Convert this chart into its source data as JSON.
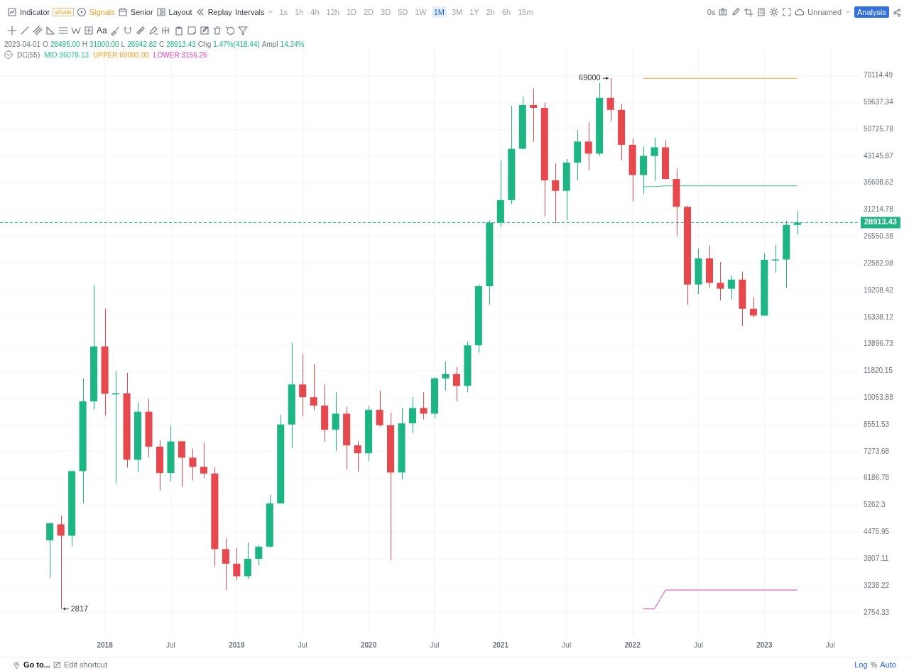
{
  "chart_data": {
    "type": "candlestick",
    "x": [
      "2017-08",
      "2017-09",
      "2017-10",
      "2017-11",
      "2017-12",
      "2018-01",
      "2018-02",
      "2018-03",
      "2018-04",
      "2018-05",
      "2018-06",
      "2018-07",
      "2018-08",
      "2018-09",
      "2018-10",
      "2018-11",
      "2018-12",
      "2019-01",
      "2019-02",
      "2019-03",
      "2019-04",
      "2019-05",
      "2019-06",
      "2019-07",
      "2019-08",
      "2019-09",
      "2019-10",
      "2019-11",
      "2019-12",
      "2020-01",
      "2020-02",
      "2020-03",
      "2020-04",
      "2020-05",
      "2020-06",
      "2020-07",
      "2020-08",
      "2020-09",
      "2020-10",
      "2020-11",
      "2020-12",
      "2021-01",
      "2021-02",
      "2021-03",
      "2021-04",
      "2021-05",
      "2021-06",
      "2021-07",
      "2021-08",
      "2021-09",
      "2021-10",
      "2021-11",
      "2021-12",
      "2022-01",
      "2022-02",
      "2022-03",
      "2022-04",
      "2022-05",
      "2022-06",
      "2022-07",
      "2022-08",
      "2022-09",
      "2022-10",
      "2022-11",
      "2022-12",
      "2023-01",
      "2023-02",
      "2023-03",
      "2023-04"
    ],
    "ohlc": [
      [
        4260,
        4750,
        3400,
        4720
      ],
      [
        4690,
        4940,
        2817,
        4380
      ],
      [
        4380,
        6500,
        4110,
        6460
      ],
      [
        6460,
        11300,
        5330,
        9840
      ],
      [
        9840,
        19800,
        9380,
        13700
      ],
      [
        13700,
        17200,
        9040,
        10300
      ],
      [
        10290,
        11800,
        6000,
        10330
      ],
      [
        10330,
        11700,
        6600,
        6920
      ],
      [
        6920,
        9760,
        6430,
        9250
      ],
      [
        9250,
        10000,
        7030,
        7490
      ],
      [
        7490,
        7790,
        5750,
        6390
      ],
      [
        6390,
        8510,
        6070,
        7730
      ],
      [
        7740,
        7750,
        5880,
        7010
      ],
      [
        7010,
        7410,
        6110,
        6630
      ],
      [
        6630,
        7680,
        6210,
        6370
      ],
      [
        6370,
        6620,
        3650,
        4040
      ],
      [
        4040,
        4310,
        3156.26,
        3700
      ],
      [
        3700,
        4070,
        3350,
        3430
      ],
      [
        3430,
        4200,
        3370,
        3810
      ],
      [
        3810,
        4140,
        3670,
        4100
      ],
      [
        4100,
        5600,
        4070,
        5320
      ],
      [
        5320,
        9070,
        5320,
        8560
      ],
      [
        8560,
        14000,
        7440,
        10900
      ],
      [
        10900,
        13100,
        9010,
        10100
      ],
      [
        10100,
        12300,
        9320,
        9590
      ],
      [
        9590,
        10900,
        7710,
        8290
      ],
      [
        8290,
        10400,
        7300,
        9140
      ],
      [
        9140,
        9510,
        6520,
        7550
      ],
      [
        7550,
        7750,
        6440,
        7200
      ],
      [
        7200,
        9580,
        6870,
        9350
      ],
      [
        9350,
        10500,
        8450,
        8520
      ],
      [
        8520,
        9190,
        3780,
        6410
      ],
      [
        6410,
        9460,
        6150,
        8620
      ],
      [
        8620,
        10100,
        8120,
        9450
      ],
      [
        9450,
        10400,
        8830,
        9140
      ],
      [
        9140,
        11400,
        8890,
        11300
      ],
      [
        11300,
        12500,
        10500,
        11600
      ],
      [
        11600,
        12100,
        9830,
        10800
      ],
      [
        10800,
        14100,
        10400,
        13800
      ],
      [
        13800,
        19900,
        13200,
        19700
      ],
      [
        19700,
        29300,
        17600,
        28900
      ],
      [
        28900,
        42000,
        28100,
        33100
      ],
      [
        33100,
        58400,
        32300,
        45100
      ],
      [
        45100,
        61800,
        45000,
        58700
      ],
      [
        58700,
        64900,
        47000,
        57700
      ],
      [
        57700,
        59600,
        30000,
        37300
      ],
      [
        37300,
        41300,
        28800,
        35000
      ],
      [
        35000,
        42400,
        29300,
        41500
      ],
      [
        41500,
        50500,
        37300,
        47100
      ],
      [
        47100,
        52900,
        39600,
        43800
      ],
      [
        43800,
        67000,
        43300,
        61300
      ],
      [
        61300,
        69000,
        53300,
        57000
      ],
      [
        57000,
        59100,
        42000,
        46200
      ],
      [
        46200,
        48000,
        32900,
        38500
      ],
      [
        38500,
        45800,
        34300,
        43200
      ],
      [
        43200,
        48200,
        37200,
        45500
      ],
      [
        45500,
        47400,
        37500,
        37600
      ],
      [
        37600,
        40000,
        26700,
        31800
      ],
      [
        31800,
        32000,
        17600,
        19900
      ],
      [
        19900,
        24700,
        18800,
        23300
      ],
      [
        23300,
        25200,
        19500,
        20100
      ],
      [
        20100,
        22800,
        18100,
        19400
      ],
      [
        19400,
        21000,
        18200,
        20500
      ],
      [
        20500,
        21500,
        15500,
        17200
      ],
      [
        17200,
        18400,
        16300,
        16500
      ],
      [
        16500,
        24000,
        16500,
        23100
      ],
      [
        23100,
        25300,
        21400,
        23140
      ],
      [
        23140,
        29200,
        19500,
        28500
      ],
      [
        28495,
        31000,
        26942.82,
        28913.43
      ]
    ],
    "colors": [
      "#1db584",
      "#e5484d",
      "#1db584",
      "#1db584",
      "#1db584",
      "#e5484d",
      "#1db584",
      "#e5484d",
      "#1db584",
      "#e5484d",
      "#e5484d",
      "#1db584",
      "#e5484d",
      "#e5484d",
      "#e5484d",
      "#e5484d",
      "#e5484d",
      "#e5484d",
      "#1db584",
      "#1db584",
      "#1db584",
      "#1db584",
      "#1db584",
      "#e5484d",
      "#e5484d",
      "#e5484d",
      "#1db584",
      "#e5484d",
      "#e5484d",
      "#1db584",
      "#e5484d",
      "#e5484d",
      "#1db584",
      "#1db584",
      "#e5484d",
      "#1db584",
      "#1db584",
      "#e5484d",
      "#1db584",
      "#1db584",
      "#1db584",
      "#1db584",
      "#1db584",
      "#1db584",
      "#e5484d",
      "#e5484d",
      "#e5484d",
      "#1db584",
      "#1db584",
      "#e5484d",
      "#1db584",
      "#e5484d",
      "#e5484d",
      "#e5484d",
      "#1db584",
      "#1db584",
      "#e5484d",
      "#e5484d",
      "#e5484d",
      "#1db584",
      "#e5484d",
      "#e5484d",
      "#1db584",
      "#e5484d",
      "#e5484d",
      "#1db584",
      "#1db584",
      "#1db584",
      "#1db584"
    ],
    "series": [
      {
        "name": "MID:36078.13",
        "type": "line",
        "color": "#2ec4a0",
        "x": [
          "2022-02",
          "2022-03",
          "2022-04",
          "2022-05",
          "2022-06",
          "2022-07",
          "2022-08",
          "2022-09",
          "2022-10",
          "2022-11",
          "2022-12",
          "2023-01",
          "2023-02",
          "2023-03",
          "2023-04"
        ],
        "values": [
          35908.5,
          35908.5,
          36078.13,
          null,
          36078.13,
          36078.13,
          36078.13,
          36078.13,
          36078.13,
          36078.13,
          36078.13,
          36078.13,
          36078.13,
          36078.13,
          36078.13
        ]
      },
      {
        "name": "UPPER:69000.00",
        "type": "line",
        "color": "#f0a020",
        "x": [
          "2022-02",
          "2022-03",
          "2022-04",
          "2022-05",
          "2022-06",
          "2022-07",
          "2022-08",
          "2022-09",
          "2022-10",
          "2022-11",
          "2022-12",
          "2023-01",
          "2023-02",
          "2023-03",
          "2023-04"
        ],
        "values": [
          69000,
          69000,
          69000,
          69000,
          69000,
          69000,
          69000,
          69000,
          69000,
          69000,
          69000,
          69000,
          69000,
          69000,
          69000
        ]
      },
      {
        "name": "LOWER:3156.26",
        "type": "line",
        "color": "#e040c0",
        "x": [
          "2022-02",
          "2022-03",
          "2022-04",
          "2022-05",
          "2022-06",
          "2022-07",
          "2022-08",
          "2022-09",
          "2022-10",
          "2022-11",
          "2022-12",
          "2023-01",
          "2023-02",
          "2023-03",
          "2023-04"
        ],
        "values": [
          2817,
          2817,
          3156.26,
          3156.26,
          3156.26,
          3156.26,
          3156.26,
          3156.26,
          3156.26,
          3156.26,
          3156.26,
          3156.26,
          3156.26,
          3156.26,
          3156.26
        ]
      }
    ],
    "legend": "top left",
    "legend_title": "DC(55)",
    "log": true,
    "grid": true,
    "xlim": [
      "2017-03-15",
      "2023-09-20"
    ],
    "xticks": [
      {
        "value": "2018-01",
        "label": "2018"
      },
      {
        "value": "2018-07",
        "label": "Jul"
      },
      {
        "value": "2019-01",
        "label": "2019"
      },
      {
        "value": "2019-07",
        "label": "Jul"
      },
      {
        "value": "2020-01",
        "label": "2020"
      },
      {
        "value": "2020-07",
        "label": "Jul"
      },
      {
        "value": "2021-01",
        "label": "2021"
      },
      {
        "value": "2021-07",
        "label": "Jul"
      },
      {
        "value": "2022-01",
        "label": "2022"
      },
      {
        "value": "2022-07",
        "label": "Jul"
      },
      {
        "value": "2023-01",
        "label": "2023"
      },
      {
        "value": "2023-07",
        "label": "Jul"
      }
    ],
    "ylim": [
      2400,
      83000
    ],
    "yticks": [
      70114.49,
      59637.34,
      50725.78,
      43145.87,
      36698.62,
      31214.78,
      26550.38,
      22582.98,
      19208.42,
      16338.12,
      13896.73,
      11820.15,
      10053.88,
      8551.53,
      7273.68,
      6186.78,
      5262.3,
      4475.95,
      3807.11,
      3238.22,
      2754.33
    ],
    "ref_lines": [
      {
        "axis": "y",
        "value": 28913.43,
        "label": "28913.43",
        "color": "#1db584",
        "line_style": "dashed"
      }
    ],
    "annotations": [
      "Indicator",
      "whale",
      "Signals",
      "Senior",
      "Layout",
      "Replay",
      "Intervals",
      "1s",
      "1h",
      "4h",
      "12h",
      "1D",
      "2D",
      "3D",
      "5D",
      "1W",
      "1M",
      "3M",
      "1Y",
      "2h",
      "6h",
      "15m",
      "0s",
      "Unnamed",
      "Analysis",
      "Aa",
      "2023-04-01 O 28495.00 H 31000.00 L 26942.82 C 28913.43 Chg 1.47%(418.44) Ampl 14.24%",
      "Go to...",
      "Edit shortcut",
      "Log",
      "%",
      "Auto",
      {
        "text": "69000",
        "x": "2021-11",
        "y": 69000
      },
      {
        "text": "2817",
        "x": "2017-09",
        "y": 2817
      }
    ]
  }
}
